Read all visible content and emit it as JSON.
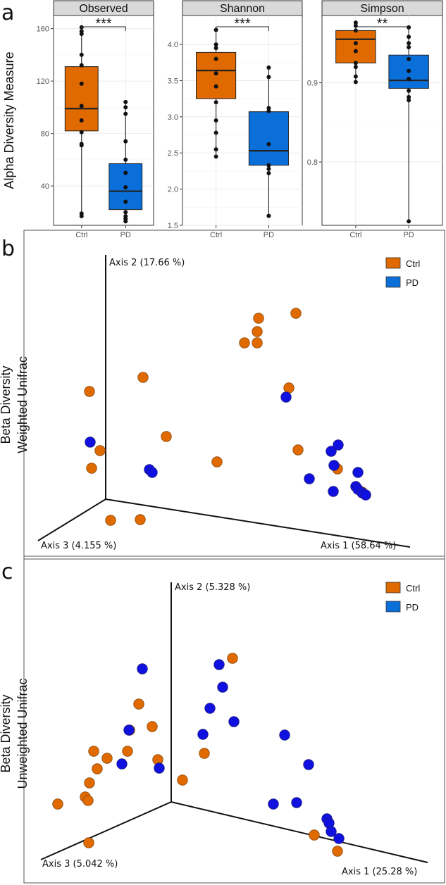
{
  "panel_labels": {
    "a": "a",
    "b": "b",
    "c": "c"
  },
  "colors": {
    "Ctrl": "#E06A00",
    "PD_box": "#0A6FD8",
    "PD_point": "#1010E0",
    "point_stroke": "#8a4a10"
  },
  "chart_data": [
    {
      "type": "boxplot",
      "title": "Observed",
      "ylabel": "Alpha Diversity Measure",
      "categories": [
        "Ctrl",
        "PD"
      ],
      "ylim": [
        10,
        170
      ],
      "yticks": [
        40,
        80,
        120,
        160
      ],
      "ytick_labels": [
        "40",
        "80",
        "120",
        "160"
      ],
      "significance": "***",
      "boxes": [
        {
          "group": "Ctrl",
          "q1": 82,
          "median": 99,
          "q3": 131,
          "whisker_low": 17,
          "whisker_high": 161,
          "points": [
            161,
            158,
            156,
            140,
            132,
            118,
            101,
            90,
            81,
            72,
            71,
            19,
            17
          ]
        },
        {
          "group": "PD",
          "q1": 22,
          "median": 36,
          "q3": 57,
          "whisker_low": 13,
          "whisker_high": 104,
          "points": [
            104,
            100,
            95,
            74,
            60,
            50,
            39,
            28,
            20,
            17,
            15,
            13
          ]
        }
      ]
    },
    {
      "type": "boxplot",
      "title": "Shannon",
      "categories": [
        "Ctrl",
        "PD"
      ],
      "ylim": [
        1.5,
        4.4
      ],
      "yticks": [
        1.5,
        2.0,
        2.5,
        3.0,
        3.5,
        4.0
      ],
      "ytick_labels": [
        "1.5",
        "2.0",
        "2.5",
        "3.0",
        "3.5",
        "4.0"
      ],
      "significance": "***",
      "boxes": [
        {
          "group": "Ctrl",
          "q1": 3.25,
          "median": 3.64,
          "q3": 3.89,
          "whisker_low": 2.45,
          "whisker_high": 4.2,
          "points": [
            4.2,
            4.0,
            3.95,
            3.8,
            3.6,
            3.42,
            3.2,
            2.95,
            2.78,
            2.55,
            2.45
          ]
        },
        {
          "group": "PD",
          "q1": 2.33,
          "median": 2.53,
          "q3": 3.07,
          "whisker_low": 1.63,
          "whisker_high": 3.68,
          "points": [
            3.68,
            3.55,
            3.12,
            3.08,
            2.62,
            2.33,
            2.28,
            2.22,
            1.63
          ]
        }
      ]
    },
    {
      "type": "boxplot",
      "title": "Simpson",
      "categories": [
        "Ctrl",
        "PD"
      ],
      "ylim": [
        0.72,
        0.985
      ],
      "yticks": [
        0.8,
        0.9
      ],
      "ytick_labels": [
        "0.8",
        "0.9"
      ],
      "significance": "**",
      "boxes": [
        {
          "group": "Ctrl",
          "q1": 0.925,
          "median": 0.955,
          "q3": 0.966,
          "whisker_low": 0.901,
          "whisker_high": 0.976,
          "points": [
            0.976,
            0.972,
            0.966,
            0.95,
            0.94,
            0.925,
            0.92,
            0.908,
            0.901
          ]
        },
        {
          "group": "PD",
          "q1": 0.893,
          "median": 0.903,
          "q3": 0.935,
          "whisker_low": 0.725,
          "whisker_high": 0.97,
          "points": [
            0.97,
            0.958,
            0.95,
            0.945,
            0.93,
            0.915,
            0.905,
            0.89,
            0.882,
            0.878,
            0.725
          ]
        }
      ]
    },
    {
      "type": "scatter3d",
      "title": "Beta Diversity Weighted Unifrac",
      "label_lines": [
        "Beta Diversity",
        "Weighted Unifrac"
      ],
      "axes": {
        "axis1": "Axis 1 (58.64 %)",
        "axis2": "Axis 2 (17.66 %)",
        "axis3": "Axis 3 (4.155 %)"
      },
      "legend": [
        "Ctrl",
        "PD"
      ],
      "series": [
        {
          "name": "Ctrl",
          "points": [
            [
              420,
              445
            ],
            [
              367,
              452
            ],
            [
              365,
              471
            ],
            [
              347,
              487
            ],
            [
              365,
              487
            ],
            [
              410,
              551
            ],
            [
              203,
              536
            ],
            [
              127,
              556
            ],
            [
              236,
              620
            ],
            [
              142,
              640
            ],
            [
              130,
              665
            ],
            [
              308,
              656
            ],
            [
              423,
              639
            ],
            [
              479,
              666
            ],
            [
              514,
              699
            ],
            [
              157,
              739
            ],
            [
              199,
              738
            ]
          ]
        },
        {
          "name": "PD",
          "points": [
            [
              406,
              564
            ],
            [
              128,
              628
            ],
            [
              212,
              667
            ],
            [
              216,
              671
            ],
            [
              470,
              641
            ],
            [
              480,
              632
            ],
            [
              474,
              661
            ],
            [
              439,
              680
            ],
            [
              508,
              671
            ],
            [
              505,
              691
            ],
            [
              508,
              695
            ],
            [
              514,
              700
            ],
            [
              519,
              703
            ],
            [
              473,
              698
            ]
          ]
        }
      ]
    },
    {
      "type": "scatter3d",
      "title": "Beta Diversity Unweighted Unifrac",
      "label_lines": [
        "Beta Diversity",
        "Unweighted Unifrac"
      ],
      "axes": {
        "axis1": "Axis 1 (25.28 %)",
        "axis2": "Axis 2 (5.328 %)",
        "axis3": "Axis 3 (5.042 %)"
      },
      "legend": [
        "Ctrl",
        "PD"
      ],
      "series": [
        {
          "name": "Ctrl",
          "points": [
            [
              330,
              935
            ],
            [
              197,
              1000
            ],
            [
              184,
              1037
            ],
            [
              216,
              1032
            ],
            [
              133,
              1067
            ],
            [
              181,
              1067
            ],
            [
              152,
              1077
            ],
            [
              138,
              1092
            ],
            [
              224,
              1079
            ],
            [
              290,
              1070
            ],
            [
              127,
              1112
            ],
            [
              121,
              1132
            ],
            [
              82,
              1142
            ],
            [
              125,
              1137
            ],
            [
              259,
              1108
            ],
            [
              126,
              1197
            ],
            [
              446,
              1186
            ],
            [
              479,
              1209
            ]
          ]
        },
        {
          "name": "PD",
          "points": [
            [
              202,
              950
            ],
            [
              311,
              944
            ],
            [
              316,
              976
            ],
            [
              298,
              1006
            ],
            [
              332,
              1025
            ],
            [
              183,
              1037
            ],
            [
              288,
              1043
            ],
            [
              404,
              1044
            ],
            [
              438,
              1086
            ],
            [
              173,
              1085
            ],
            [
              226,
              1091
            ],
            [
              388,
              1142
            ],
            [
              421,
              1140
            ],
            [
              464,
              1163
            ],
            [
              467,
              1169
            ],
            [
              470,
              1181
            ],
            [
              481,
              1191
            ]
          ]
        }
      ]
    }
  ]
}
